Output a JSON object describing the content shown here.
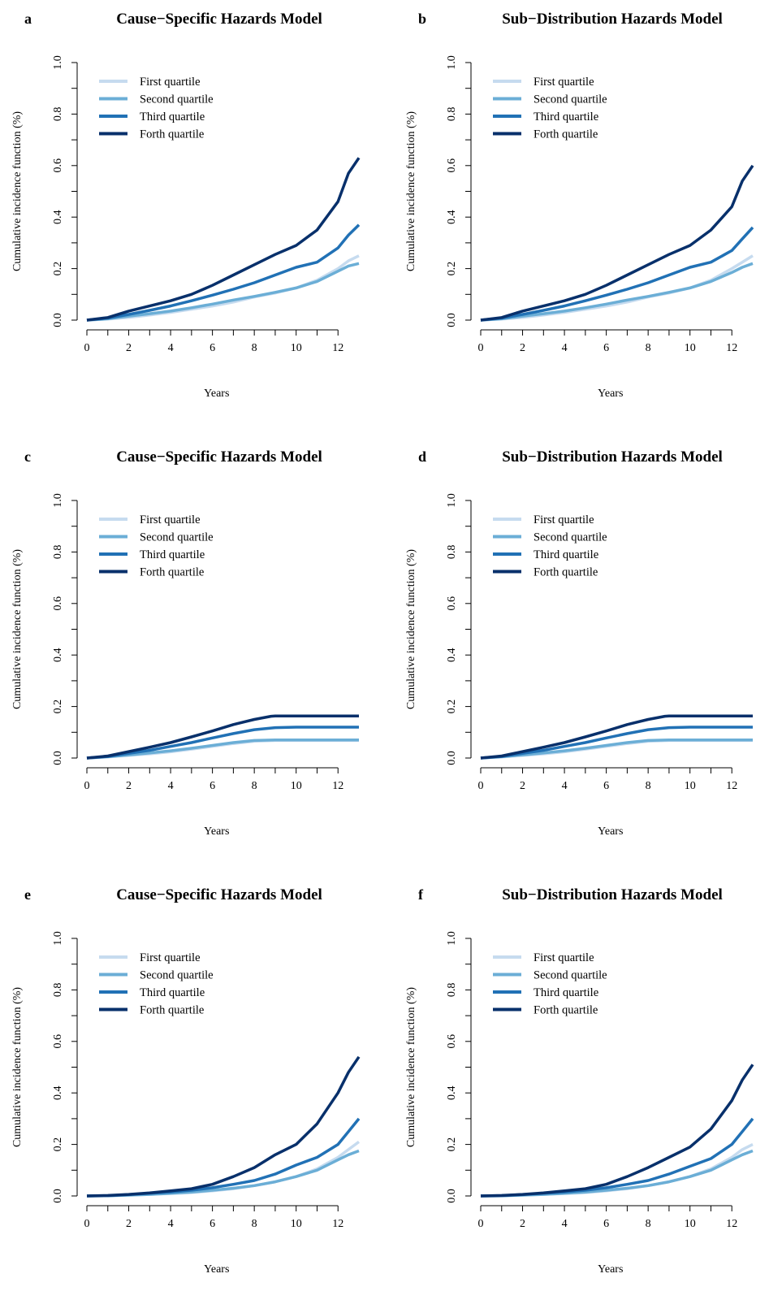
{
  "colors": {
    "first": "#c6dbef",
    "second": "#6baed6",
    "third": "#2171b5",
    "fourth": "#08306b"
  },
  "chart_data": [
    {
      "type": "line",
      "panel": "a",
      "title": "Cause−Specific Hazards Model",
      "xlabel": "Years",
      "ylabel": "Cumulative incidence function (%)",
      "xlim": [
        0,
        13
      ],
      "ylim": [
        0,
        1
      ],
      "xticks": [
        "0",
        "2",
        "4",
        "6",
        "8",
        "10",
        "12"
      ],
      "yticks": [
        "0.0",
        "0.2",
        "0.4",
        "0.6",
        "0.8",
        "1.0"
      ],
      "legend_position": "top-left",
      "grid": false,
      "series": [
        {
          "name": "First quartile",
          "color": "#c6dbef",
          "x": [
            0,
            1,
            2,
            3,
            4,
            5,
            6,
            7,
            8,
            9,
            10,
            11,
            12,
            12.5,
            13
          ],
          "y": [
            0,
            0.004,
            0.01,
            0.02,
            0.03,
            0.042,
            0.055,
            0.07,
            0.09,
            0.105,
            0.125,
            0.155,
            0.2,
            0.23,
            0.25
          ]
        },
        {
          "name": "Second quartile",
          "color": "#6baed6",
          "x": [
            0,
            1,
            2,
            3,
            4,
            5,
            6,
            7,
            8,
            9,
            10,
            11,
            12,
            12.5,
            13
          ],
          "y": [
            0,
            0.005,
            0.015,
            0.025,
            0.035,
            0.048,
            0.062,
            0.078,
            0.092,
            0.108,
            0.125,
            0.15,
            0.19,
            0.21,
            0.22
          ]
        },
        {
          "name": "Third quartile",
          "color": "#2171b5",
          "x": [
            0,
            1,
            2,
            3,
            4,
            5,
            6,
            7,
            8,
            9,
            10,
            11,
            12,
            12.5,
            13
          ],
          "y": [
            0,
            0.008,
            0.022,
            0.038,
            0.055,
            0.075,
            0.097,
            0.12,
            0.145,
            0.175,
            0.205,
            0.225,
            0.28,
            0.33,
            0.37
          ]
        },
        {
          "name": "Forth quartile",
          "color": "#08306b",
          "x": [
            0,
            1,
            2,
            3,
            4,
            5,
            6,
            7,
            8,
            9,
            10,
            11,
            12,
            12.5,
            13
          ],
          "y": [
            0,
            0.01,
            0.035,
            0.055,
            0.075,
            0.1,
            0.135,
            0.175,
            0.215,
            0.255,
            0.29,
            0.35,
            0.46,
            0.57,
            0.63
          ]
        }
      ]
    },
    {
      "type": "line",
      "panel": "b",
      "title": "Sub−Distribution Hazards Model",
      "xlabel": "Years",
      "ylabel": "Cumulative incidence function (%)",
      "xlim": [
        0,
        13
      ],
      "ylim": [
        0,
        1
      ],
      "xticks": [
        "0",
        "2",
        "4",
        "6",
        "8",
        "10",
        "12"
      ],
      "yticks": [
        "0.0",
        "0.2",
        "0.4",
        "0.6",
        "0.8",
        "1.0"
      ],
      "legend_position": "top-left",
      "grid": false,
      "series": [
        {
          "name": "First quartile",
          "color": "#c6dbef",
          "x": [
            0,
            1,
            2,
            3,
            4,
            5,
            6,
            7,
            8,
            9,
            10,
            11,
            12,
            12.5,
            13
          ],
          "y": [
            0,
            0.004,
            0.01,
            0.02,
            0.03,
            0.042,
            0.055,
            0.07,
            0.09,
            0.105,
            0.125,
            0.155,
            0.2,
            0.225,
            0.25
          ]
        },
        {
          "name": "Second quartile",
          "color": "#6baed6",
          "x": [
            0,
            1,
            2,
            3,
            4,
            5,
            6,
            7,
            8,
            9,
            10,
            11,
            12,
            12.5,
            13
          ],
          "y": [
            0,
            0.005,
            0.015,
            0.025,
            0.035,
            0.048,
            0.062,
            0.078,
            0.092,
            0.108,
            0.125,
            0.15,
            0.185,
            0.205,
            0.22
          ]
        },
        {
          "name": "Third quartile",
          "color": "#2171b5",
          "x": [
            0,
            1,
            2,
            3,
            4,
            5,
            6,
            7,
            8,
            9,
            10,
            11,
            12,
            12.5,
            13
          ],
          "y": [
            0,
            0.008,
            0.022,
            0.038,
            0.055,
            0.075,
            0.097,
            0.12,
            0.145,
            0.175,
            0.205,
            0.225,
            0.27,
            0.315,
            0.36
          ]
        },
        {
          "name": "Forth quartile",
          "color": "#08306b",
          "x": [
            0,
            1,
            2,
            3,
            4,
            5,
            6,
            7,
            8,
            9,
            10,
            11,
            12,
            12.5,
            13
          ],
          "y": [
            0,
            0.01,
            0.035,
            0.055,
            0.075,
            0.1,
            0.135,
            0.175,
            0.215,
            0.255,
            0.29,
            0.35,
            0.44,
            0.54,
            0.6
          ]
        }
      ]
    },
    {
      "type": "line",
      "panel": "c",
      "title": "Cause−Specific Hazards Model",
      "xlabel": "Years",
      "ylabel": "Cumulative incidence function (%)",
      "xlim": [
        0,
        13
      ],
      "ylim": [
        0,
        1
      ],
      "xticks": [
        "0",
        "2",
        "4",
        "6",
        "8",
        "10",
        "12"
      ],
      "yticks": [
        "0.0",
        "0.2",
        "0.4",
        "0.6",
        "0.8",
        "1.0"
      ],
      "legend_position": "top-left",
      "grid": false,
      "series": [
        {
          "name": "First quartile",
          "color": "#c6dbef",
          "x": [
            0,
            1,
            2,
            3,
            4,
            5,
            6,
            7,
            8,
            9,
            10,
            11,
            12,
            13
          ],
          "y": [
            0,
            0.004,
            0.01,
            0.016,
            0.024,
            0.034,
            0.045,
            0.056,
            0.065,
            0.068,
            0.068,
            0.068,
            0.068,
            0.068
          ]
        },
        {
          "name": "Second quartile",
          "color": "#6baed6",
          "x": [
            0,
            1,
            2,
            3,
            4,
            5,
            6,
            7,
            8,
            9,
            10,
            11,
            12,
            13
          ],
          "y": [
            0,
            0.005,
            0.012,
            0.02,
            0.028,
            0.038,
            0.049,
            0.06,
            0.068,
            0.07,
            0.07,
            0.07,
            0.07,
            0.07
          ]
        },
        {
          "name": "Third quartile",
          "color": "#2171b5",
          "x": [
            0,
            1,
            2,
            3,
            4,
            5,
            6,
            7,
            8,
            9,
            10,
            11,
            12,
            13
          ],
          "y": [
            0,
            0.006,
            0.018,
            0.03,
            0.045,
            0.06,
            0.078,
            0.095,
            0.11,
            0.118,
            0.12,
            0.12,
            0.12,
            0.12
          ]
        },
        {
          "name": "Forth quartile",
          "color": "#08306b",
          "x": [
            0,
            1,
            2,
            3,
            4,
            5,
            6,
            7,
            8,
            8.8,
            9,
            10,
            11,
            12,
            13
          ],
          "y": [
            0,
            0.008,
            0.025,
            0.042,
            0.06,
            0.082,
            0.105,
            0.13,
            0.15,
            0.162,
            0.163,
            0.163,
            0.163,
            0.163,
            0.163
          ]
        }
      ]
    },
    {
      "type": "line",
      "panel": "d",
      "title": "Sub−Distribution Hazards Model",
      "xlabel": "Years",
      "ylabel": "Cumulative incidence function (%)",
      "xlim": [
        0,
        13
      ],
      "ylim": [
        0,
        1
      ],
      "xticks": [
        "0",
        "2",
        "4",
        "6",
        "8",
        "10",
        "12"
      ],
      "yticks": [
        "0.0",
        "0.2",
        "0.4",
        "0.6",
        "0.8",
        "1.0"
      ],
      "legend_position": "top-left",
      "grid": false,
      "series": [
        {
          "name": "First quartile",
          "color": "#c6dbef",
          "x": [
            0,
            1,
            2,
            3,
            4,
            5,
            6,
            7,
            8,
            9,
            10,
            11,
            12,
            13
          ],
          "y": [
            0,
            0.004,
            0.01,
            0.016,
            0.024,
            0.034,
            0.045,
            0.056,
            0.065,
            0.068,
            0.068,
            0.068,
            0.068,
            0.068
          ]
        },
        {
          "name": "Second quartile",
          "color": "#6baed6",
          "x": [
            0,
            1,
            2,
            3,
            4,
            5,
            6,
            7,
            8,
            9,
            10,
            11,
            12,
            13
          ],
          "y": [
            0,
            0.005,
            0.012,
            0.02,
            0.028,
            0.038,
            0.049,
            0.06,
            0.068,
            0.07,
            0.07,
            0.07,
            0.07,
            0.07
          ]
        },
        {
          "name": "Third quartile",
          "color": "#2171b5",
          "x": [
            0,
            1,
            2,
            3,
            4,
            5,
            6,
            7,
            8,
            9,
            10,
            11,
            12,
            13
          ],
          "y": [
            0,
            0.006,
            0.018,
            0.03,
            0.045,
            0.06,
            0.078,
            0.095,
            0.11,
            0.118,
            0.12,
            0.12,
            0.12,
            0.12
          ]
        },
        {
          "name": "Forth quartile",
          "color": "#08306b",
          "x": [
            0,
            1,
            2,
            3,
            4,
            5,
            6,
            7,
            8,
            8.8,
            9,
            10,
            11,
            12,
            13
          ],
          "y": [
            0,
            0.008,
            0.025,
            0.042,
            0.06,
            0.082,
            0.105,
            0.13,
            0.15,
            0.162,
            0.163,
            0.163,
            0.163,
            0.163,
            0.163
          ]
        }
      ]
    },
    {
      "type": "line",
      "panel": "e",
      "title": "Cause−Specific Hazards Model",
      "xlabel": "Years",
      "ylabel": "Cumulative incidence function (%)",
      "xlim": [
        0,
        13
      ],
      "ylim": [
        0,
        1
      ],
      "xticks": [
        "0",
        "2",
        "4",
        "6",
        "8",
        "10",
        "12"
      ],
      "yticks": [
        "0.0",
        "0.2",
        "0.4",
        "0.6",
        "0.8",
        "1.0"
      ],
      "legend_position": "top-left",
      "grid": false,
      "series": [
        {
          "name": "First quartile",
          "color": "#c6dbef",
          "x": [
            0,
            1,
            2,
            3,
            4,
            5,
            6,
            7,
            8,
            9,
            10,
            11,
            12,
            12.5,
            13
          ],
          "y": [
            0,
            0.001,
            0.003,
            0.006,
            0.009,
            0.013,
            0.02,
            0.028,
            0.04,
            0.055,
            0.075,
            0.105,
            0.15,
            0.18,
            0.21
          ]
        },
        {
          "name": "Second quartile",
          "color": "#6baed6",
          "x": [
            0,
            1,
            2,
            3,
            4,
            5,
            6,
            7,
            8,
            9,
            10,
            11,
            12,
            12.5,
            13
          ],
          "y": [
            0,
            0.001,
            0.003,
            0.006,
            0.01,
            0.015,
            0.022,
            0.03,
            0.04,
            0.055,
            0.075,
            0.1,
            0.14,
            0.16,
            0.175
          ]
        },
        {
          "name": "Third quartile",
          "color": "#2171b5",
          "x": [
            0,
            1,
            2,
            3,
            4,
            5,
            6,
            7,
            8,
            9,
            10,
            11,
            12,
            12.5,
            13
          ],
          "y": [
            0,
            0.001,
            0.005,
            0.01,
            0.015,
            0.022,
            0.032,
            0.045,
            0.06,
            0.085,
            0.12,
            0.15,
            0.2,
            0.25,
            0.3
          ]
        },
        {
          "name": "Forth quartile",
          "color": "#08306b",
          "x": [
            0,
            1,
            2,
            3,
            4,
            5,
            6,
            7,
            8,
            9,
            10,
            11,
            12,
            12.5,
            13
          ],
          "y": [
            0,
            0.002,
            0.006,
            0.012,
            0.02,
            0.028,
            0.045,
            0.075,
            0.11,
            0.16,
            0.2,
            0.28,
            0.4,
            0.48,
            0.54
          ]
        }
      ]
    },
    {
      "type": "line",
      "panel": "f",
      "title": "Sub−Distribution Hazards Model",
      "xlabel": "Years",
      "ylabel": "Cumulative incidence function (%)",
      "xlim": [
        0,
        13
      ],
      "ylim": [
        0,
        1
      ],
      "xticks": [
        "0",
        "2",
        "4",
        "6",
        "8",
        "10",
        "12"
      ],
      "yticks": [
        "0.0",
        "0.2",
        "0.4",
        "0.6",
        "0.8",
        "1.0"
      ],
      "legend_position": "top-left",
      "grid": false,
      "series": [
        {
          "name": "First quartile",
          "color": "#c6dbef",
          "x": [
            0,
            1,
            2,
            3,
            4,
            5,
            6,
            7,
            8,
            9,
            10,
            11,
            12,
            12.5,
            13
          ],
          "y": [
            0,
            0.001,
            0.003,
            0.006,
            0.009,
            0.013,
            0.02,
            0.028,
            0.04,
            0.055,
            0.075,
            0.105,
            0.15,
            0.18,
            0.2
          ]
        },
        {
          "name": "Second quartile",
          "color": "#6baed6",
          "x": [
            0,
            1,
            2,
            3,
            4,
            5,
            6,
            7,
            8,
            9,
            10,
            11,
            12,
            12.5,
            13
          ],
          "y": [
            0,
            0.001,
            0.003,
            0.006,
            0.01,
            0.015,
            0.022,
            0.03,
            0.04,
            0.055,
            0.075,
            0.1,
            0.14,
            0.16,
            0.175
          ]
        },
        {
          "name": "Third quartile",
          "color": "#2171b5",
          "x": [
            0,
            1,
            2,
            3,
            4,
            5,
            6,
            7,
            8,
            9,
            10,
            11,
            12,
            12.5,
            13
          ],
          "y": [
            0,
            0.001,
            0.005,
            0.01,
            0.015,
            0.022,
            0.032,
            0.045,
            0.06,
            0.085,
            0.115,
            0.145,
            0.2,
            0.25,
            0.3
          ]
        },
        {
          "name": "Forth quartile",
          "color": "#08306b",
          "x": [
            0,
            1,
            2,
            3,
            4,
            5,
            6,
            7,
            8,
            9,
            10,
            11,
            12,
            12.5,
            13
          ],
          "y": [
            0,
            0.002,
            0.006,
            0.012,
            0.02,
            0.028,
            0.045,
            0.075,
            0.11,
            0.15,
            0.19,
            0.26,
            0.37,
            0.45,
            0.51
          ]
        }
      ]
    }
  ]
}
